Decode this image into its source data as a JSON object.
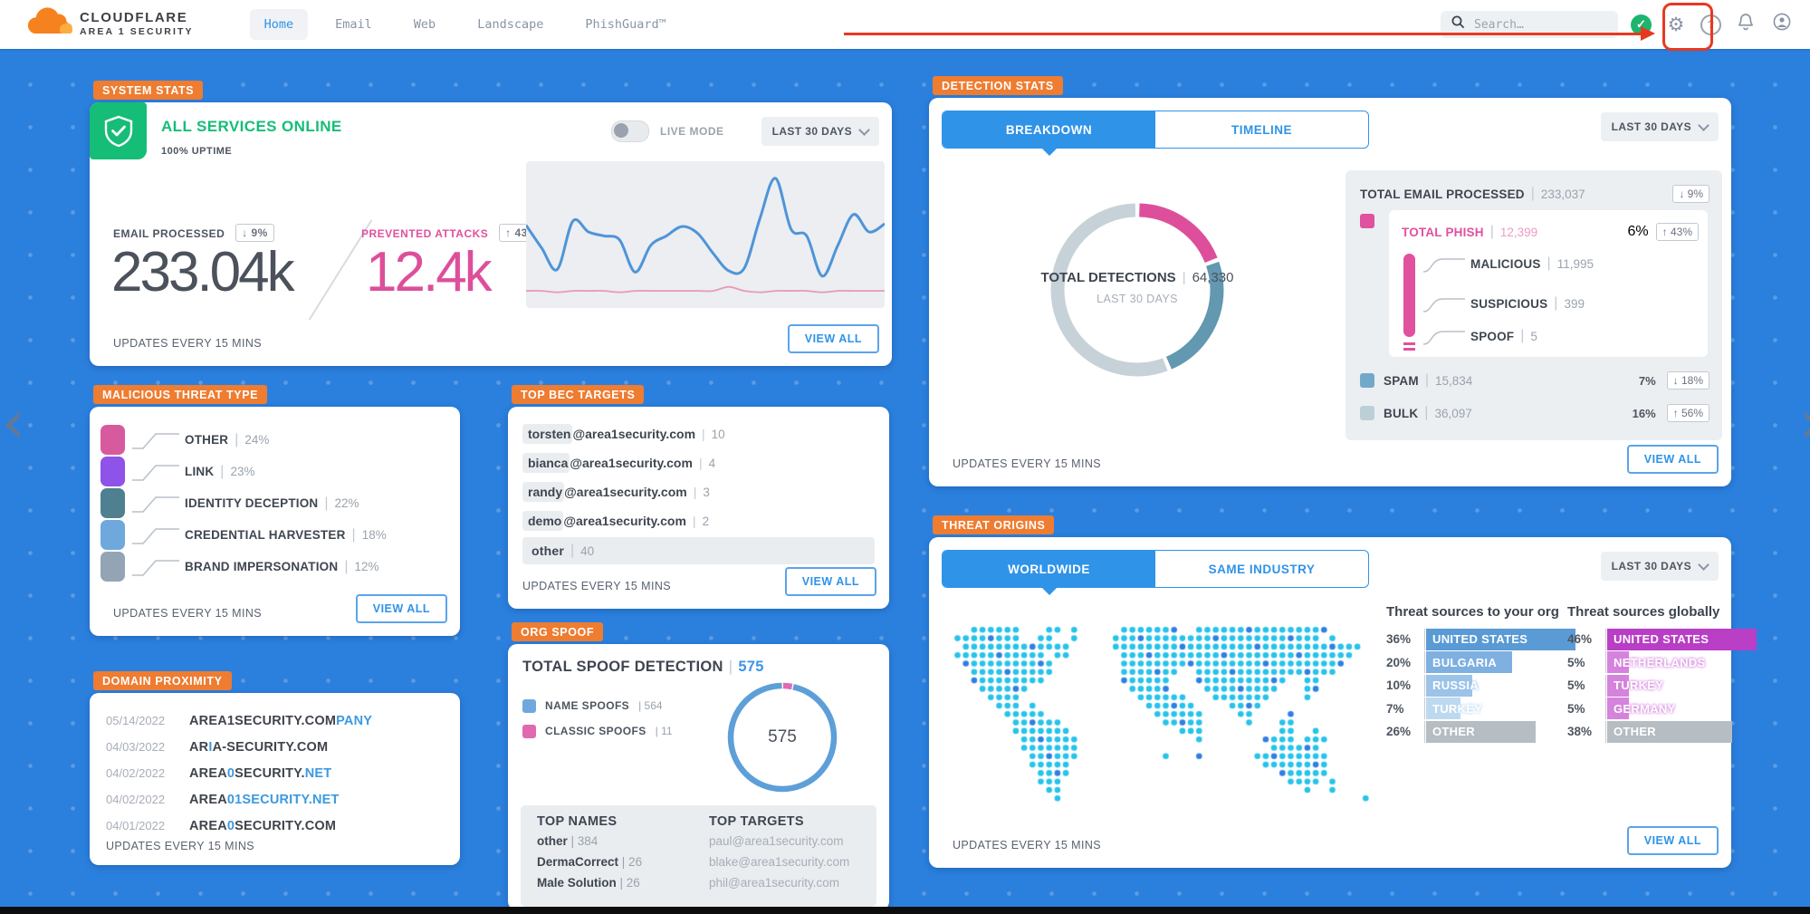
{
  "nav": {
    "brand_line1": "CLOUDFLARE",
    "brand_line2": "AREA 1 SECURITY",
    "items": [
      "Home",
      "Email",
      "Web",
      "Landscape",
      "PhishGuard™"
    ],
    "active_item": "Home",
    "search_placeholder": "Search…"
  },
  "common": {
    "last_30_days": "LAST 30 DAYS",
    "view_all": "VIEW ALL",
    "updates_every": "UPDATES EVERY 15 MINS"
  },
  "system_stats": {
    "badge": "SYSTEM STATS",
    "status_text": "ALL SERVICES ONLINE",
    "uptime_text": "100% UPTIME",
    "live_mode_label": "LIVE MODE",
    "email_processed": {
      "label": "EMAIL PROCESSED",
      "delta": "↓ 9%",
      "value": "233.04k"
    },
    "prevented_attacks": {
      "label": "PREVENTED ATTACKS",
      "delta": "↑ 43%",
      "value": "12.4k"
    }
  },
  "threat_type": {
    "badge": "MALICIOUS THREAT TYPE",
    "items": [
      {
        "label": "OTHER",
        "pct": "24%",
        "color": "#d85a9e"
      },
      {
        "label": "LINK",
        "pct": "23%",
        "color": "#8e53e8"
      },
      {
        "label": "IDENTITY DECEPTION",
        "pct": "22%",
        "color": "#4f808f"
      },
      {
        "label": "CREDENTIAL HARVESTER",
        "pct": "18%",
        "color": "#6fa8dc"
      },
      {
        "label": "BRAND IMPERSONATION",
        "pct": "12%",
        "color": "#93a4b4"
      }
    ]
  },
  "domain_proximity": {
    "badge": "DOMAIN PROXIMITY",
    "rows": [
      {
        "date": "05/14/2022",
        "parts": [
          {
            "t": "AREA1SECURITY.COM",
            "hl": false
          },
          {
            "t": "PANY",
            "hl": true
          }
        ]
      },
      {
        "date": "04/03/2022",
        "parts": [
          {
            "t": "AR",
            "hl": false
          },
          {
            "t": "I",
            "hl": true
          },
          {
            "t": "A-SECURITY.COM",
            "hl": false
          }
        ]
      },
      {
        "date": "04/02/2022",
        "parts": [
          {
            "t": "AREA",
            "hl": false
          },
          {
            "t": "0",
            "hl": true
          },
          {
            "t": "SECURITY.",
            "hl": false
          },
          {
            "t": "NET",
            "hl": true
          }
        ]
      },
      {
        "date": "04/02/2022",
        "parts": [
          {
            "t": "AREA",
            "hl": false
          },
          {
            "t": "01SECURITY.NET",
            "hl": true
          }
        ]
      },
      {
        "date": "04/01/2022",
        "parts": [
          {
            "t": "AREA",
            "hl": false
          },
          {
            "t": "0",
            "hl": true
          },
          {
            "t": "SECURITY.COM",
            "hl": false
          }
        ]
      }
    ]
  },
  "bec_targets": {
    "badge": "TOP BEC TARGETS",
    "rows": [
      {
        "user": "torsten",
        "rest": "@area1security.com",
        "count": "10"
      },
      {
        "user": "bianca",
        "rest": "@area1security.com",
        "count": "4"
      },
      {
        "user": "randy",
        "rest": "@area1security.com",
        "count": "3"
      },
      {
        "user": "demo",
        "rest": "@area1security.com",
        "count": "2"
      }
    ],
    "other_row": {
      "label": "other",
      "count": "40"
    }
  },
  "org_spoof": {
    "badge": "ORG SPOOF",
    "title": "TOTAL SPOOF DETECTION",
    "total": "575",
    "legend": [
      {
        "label": "NAME SPOOFS",
        "value": "564",
        "color": "#6fa8dc"
      },
      {
        "label": "CLASSIC SPOOFS",
        "value": "11",
        "color": "#e06ab0"
      }
    ],
    "donut_center": "575",
    "top_names_title": "TOP NAMES",
    "top_names": [
      {
        "name": "other",
        "value": "384"
      },
      {
        "name": "DermaCorrect",
        "value": "26"
      },
      {
        "name": "Male Solution",
        "value": "26"
      }
    ],
    "top_targets_title": "TOP TARGETS",
    "top_targets": [
      "paul@area1security.com",
      "blake@area1security.com",
      "phil@area1security.com"
    ]
  },
  "detection_stats": {
    "badge": "DETECTION STATS",
    "tabs": [
      "BREAKDOWN",
      "TIMELINE"
    ],
    "center_label": "TOTAL DETECTIONS",
    "center_value": "64,330",
    "center_sub": "LAST 30 DAYS",
    "total_email": {
      "label": "TOTAL EMAIL PROCESSED",
      "value": "233,037",
      "delta": "↓ 9%"
    },
    "phish": {
      "label": "TOTAL PHISH",
      "value": "12,399",
      "pct": "6%",
      "delta": "↑ 43%",
      "color": "#e0519e",
      "children": [
        {
          "label": "MALICIOUS",
          "value": "11,995"
        },
        {
          "label": "SUSPICIOUS",
          "value": "399"
        },
        {
          "label": "SPOOF",
          "value": "5"
        }
      ]
    },
    "spam": {
      "label": "SPAM",
      "value": "15,834",
      "pct": "7%",
      "delta": "↓ 18%",
      "color": "#72a9c9"
    },
    "bulk": {
      "label": "BULK",
      "value": "36,097",
      "pct": "16%",
      "delta": "↑ 56%",
      "color": "#bccfd7"
    }
  },
  "threat_origins": {
    "badge": "THREAT ORIGINS",
    "tabs": [
      "WORLDWIDE",
      "SAME INDUSTRY"
    ],
    "org_title": "Threat sources to your org",
    "org": [
      {
        "pct": 36,
        "pct_label": "36%",
        "country": "UNITED STATES",
        "color": "#5b9bd5"
      },
      {
        "pct": 20,
        "pct_label": "20%",
        "country": "BULGARIA",
        "color": "#7fb0e0"
      },
      {
        "pct": 10,
        "pct_label": "10%",
        "country": "RUSSIA",
        "color": "#9cc3e8"
      },
      {
        "pct": 7,
        "pct_label": "7%",
        "country": "TURKEY",
        "color": "#bdd9f0"
      },
      {
        "pct": 26,
        "pct_label": "26%",
        "country": "OTHER",
        "color": "#b6bdc3"
      }
    ],
    "global_title": "Threat sources globally",
    "global": [
      {
        "pct": 46,
        "pct_label": "46%",
        "country": "UNITED STATES",
        "color": "#b93fc6"
      },
      {
        "pct": 5,
        "pct_label": "5%",
        "country": "NETHERLANDS",
        "color": "#d583dd"
      },
      {
        "pct": 5,
        "pct_label": "5%",
        "country": "TURKEY",
        "color": "#d583dd"
      },
      {
        "pct": 5,
        "pct_label": "5%",
        "country": "GERMANY",
        "color": "#d583dd"
      },
      {
        "pct": 38,
        "pct_label": "38%",
        "country": "OTHER",
        "color": "#b6bdc3"
      }
    ]
  },
  "chart_data": [
    {
      "type": "line",
      "title": "System stats sparkline (last 30 days)",
      "x_axis_visible": false,
      "y_axis_visible": false,
      "series": [
        {
          "name": "email processed",
          "color": "#4f94d8",
          "values": [
            55,
            38,
            22,
            58,
            50,
            47,
            44,
            20,
            40,
            47,
            54,
            49,
            34,
            21,
            23,
            60,
            90,
            52,
            47,
            17,
            40,
            63,
            50,
            56
          ]
        },
        {
          "name": "prevented attacks",
          "color": "#e59ab8",
          "values": [
            6,
            6,
            5,
            6,
            6,
            6,
            5,
            6,
            6,
            6,
            6,
            6,
            6,
            9,
            6,
            5,
            6,
            6,
            6,
            5,
            6,
            6,
            6,
            6
          ]
        }
      ]
    },
    {
      "type": "pie",
      "title": "Detection breakdown donut",
      "labels": [
        "TOTAL PHISH",
        "SPAM",
        "BULK"
      ],
      "values": [
        12399,
        15834,
        36097
      ],
      "colors": [
        "#dd4f9b",
        "#6298b0",
        "#c7d2d8"
      ],
      "center_label": "TOTAL DETECTIONS | 64,330 — LAST 30 DAYS",
      "total": 64330
    },
    {
      "type": "pie",
      "title": "Org spoof donut",
      "labels": [
        "NAME SPOOFS",
        "CLASSIC SPOOFS"
      ],
      "values": [
        564,
        11
      ],
      "colors": [
        "#5d9fd8",
        "#e06ab0"
      ],
      "total": 575
    },
    {
      "type": "bar",
      "title": "Malicious threat type (%)",
      "categories": [
        "OTHER",
        "LINK",
        "IDENTITY DECEPTION",
        "CREDENTIAL HARVESTER",
        "BRAND IMPERSONATION"
      ],
      "values": [
        24,
        23,
        22,
        18,
        12
      ]
    },
    {
      "type": "bar",
      "title": "Threat sources to your org (%)",
      "categories": [
        "UNITED STATES",
        "BULGARIA",
        "RUSSIA",
        "TURKEY",
        "OTHER"
      ],
      "values": [
        36,
        20,
        10,
        7,
        26
      ]
    },
    {
      "type": "bar",
      "title": "Threat sources globally (%)",
      "categories": [
        "UNITED STATES",
        "NETHERLANDS",
        "TURKEY",
        "GERMANY",
        "OTHER"
      ],
      "values": [
        46,
        5,
        5,
        5,
        38
      ]
    }
  ]
}
